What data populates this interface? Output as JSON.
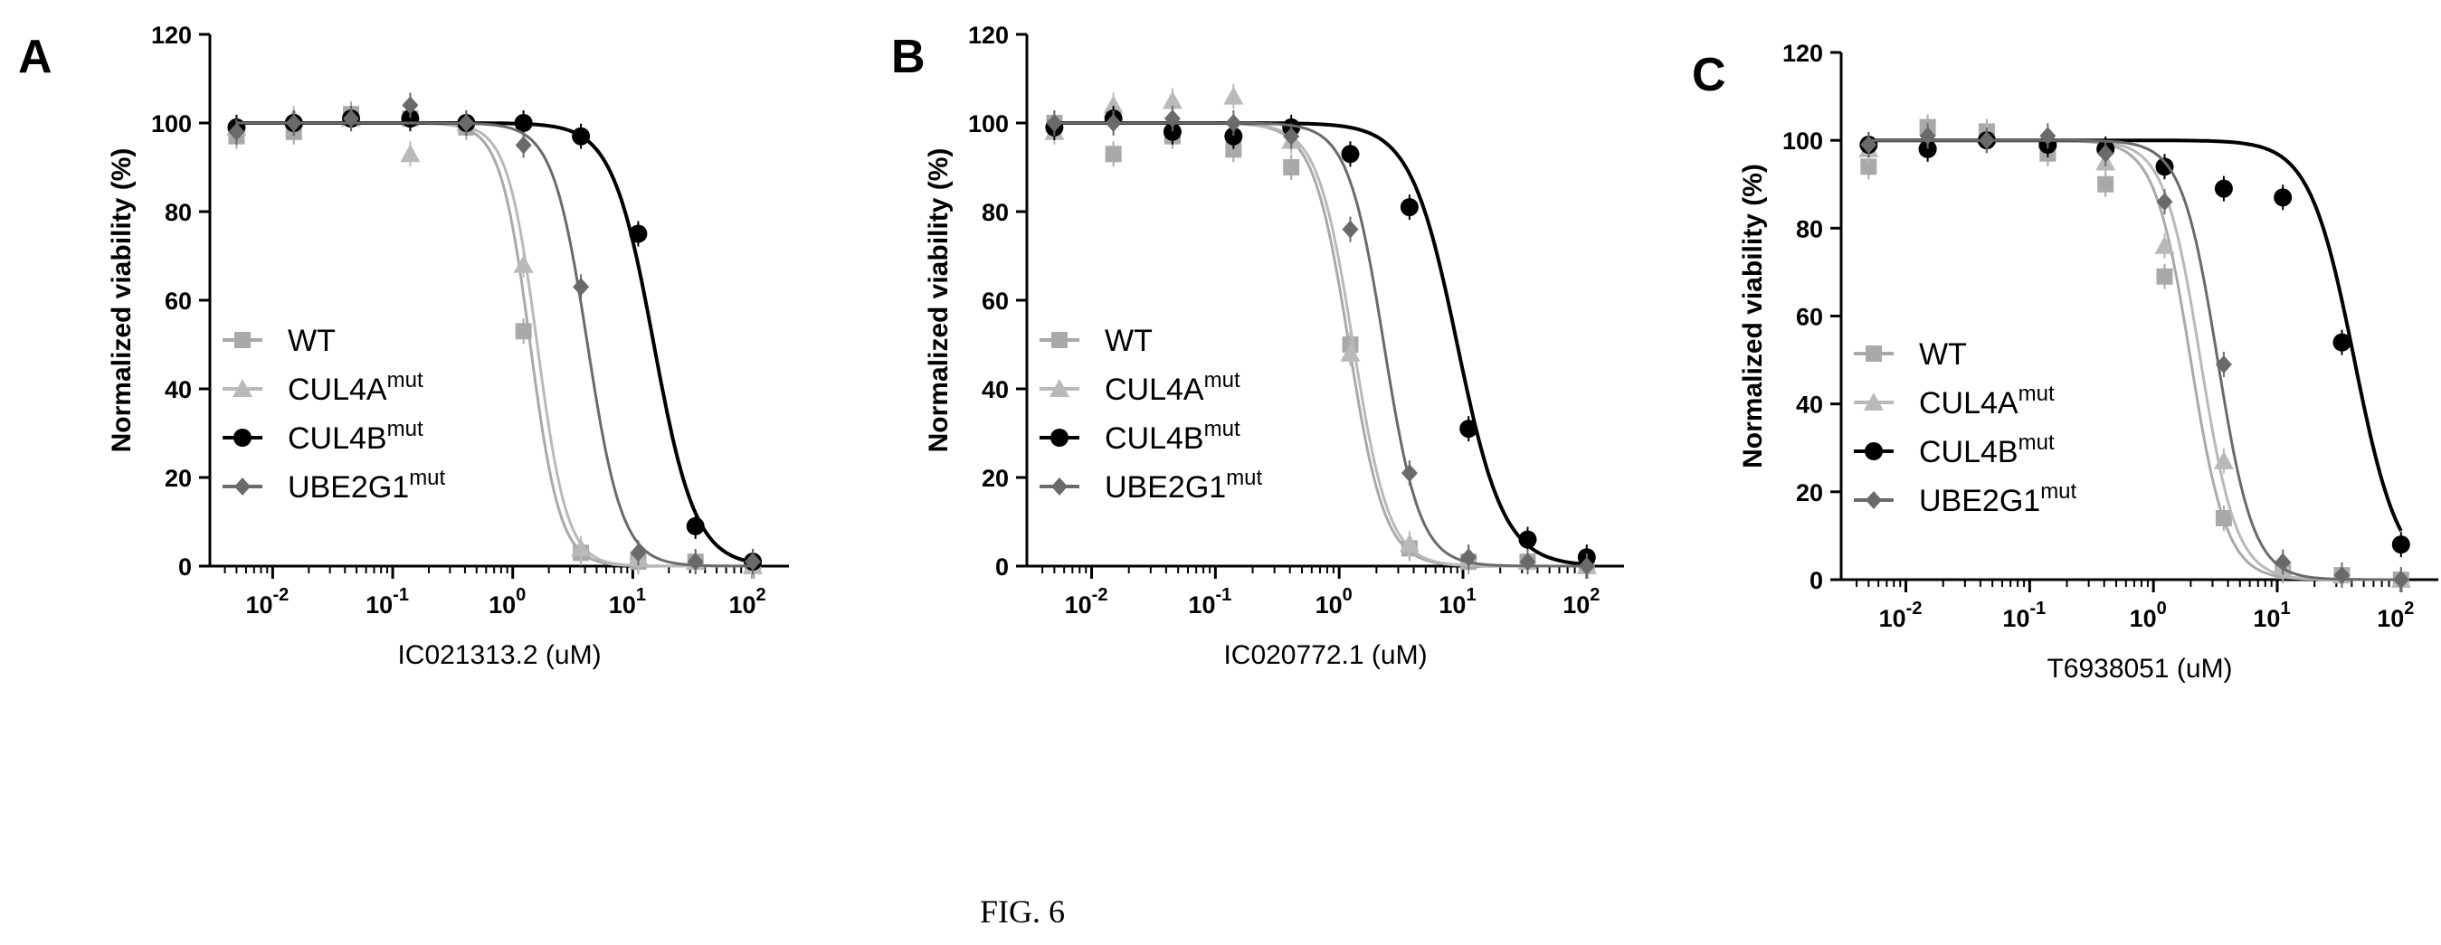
{
  "figure": {
    "caption": "FIG. 6"
  },
  "series_styles": {
    "WT": {
      "color": "#a9a9a9",
      "marker": "square"
    },
    "CUL4A": {
      "color": "#b9b9b9",
      "marker": "triangle"
    },
    "CUL4B": {
      "color": "#000000",
      "marker": "circle"
    },
    "UBE2G1": {
      "color": "#6a6a6a",
      "marker": "diamond"
    }
  },
  "chart_data": [
    {
      "panel": "A",
      "type": "scatter",
      "xlabel": "IC021313.2 (uM)",
      "ylabel": "Normalized viability (%)",
      "xscale": "log",
      "xlim": [
        0.003,
        200
      ],
      "ylim": [
        0,
        120
      ],
      "yticks": [
        "0",
        "20",
        "40",
        "60",
        "80",
        "100",
        "120"
      ],
      "xticks": [
        {
          "base": "10",
          "exp": "-2"
        },
        {
          "base": "10",
          "exp": "-1"
        },
        {
          "base": "10",
          "exp": "0"
        },
        {
          "base": "10",
          "exp": "1"
        },
        {
          "base": "10",
          "exp": "2"
        }
      ],
      "legend_position": "bottom-left",
      "series": [
        {
          "name": "WT",
          "sup": "",
          "ic50": 1.4,
          "hill": 3.5,
          "x": [
            0.005,
            0.015,
            0.045,
            0.14,
            0.41,
            1.23,
            3.7,
            11.1,
            33.3,
            100
          ],
          "y": [
            97,
            98,
            102,
            101,
            99,
            53,
            3,
            1,
            1,
            0
          ]
        },
        {
          "name": "CUL4A",
          "sup": "mut",
          "ic50": 1.6,
          "hill": 3.5,
          "x": [
            0.005,
            0.015,
            0.045,
            0.14,
            0.41,
            1.23,
            3.7,
            11.1,
            33.3,
            100
          ],
          "y": [
            99,
            101,
            101,
            93,
            100,
            68,
            4,
            2,
            1,
            0
          ]
        },
        {
          "name": "CUL4B",
          "sup": "mut",
          "ic50": 15,
          "hill": 2.5,
          "x": [
            0.005,
            0.015,
            0.045,
            0.14,
            0.41,
            1.23,
            3.7,
            11.1,
            33.3,
            100
          ],
          "y": [
            99,
            100,
            101,
            101,
            100,
            100,
            97,
            75,
            9,
            1
          ]
        },
        {
          "name": "UBE2G1",
          "sup": "mut",
          "ic50": 4.2,
          "hill": 3.0,
          "x": [
            0.005,
            0.015,
            0.045,
            0.14,
            0.41,
            1.23,
            3.7,
            11.1,
            33.3,
            100
          ],
          "y": [
            98,
            100,
            101,
            104,
            100,
            95,
            63,
            3,
            1,
            1
          ]
        }
      ]
    },
    {
      "panel": "B",
      "type": "scatter",
      "xlabel": "IC020772.1 (uM)",
      "ylabel": "Normalized viability (%)",
      "xscale": "log",
      "xlim": [
        0.003,
        200
      ],
      "ylim": [
        0,
        120
      ],
      "yticks": [
        "0",
        "20",
        "40",
        "60",
        "80",
        "100",
        "120"
      ],
      "xticks": [
        {
          "base": "10",
          "exp": "-2"
        },
        {
          "base": "10",
          "exp": "-1"
        },
        {
          "base": "10",
          "exp": "0"
        },
        {
          "base": "10",
          "exp": "1"
        },
        {
          "base": "10",
          "exp": "2"
        }
      ],
      "legend_position": "bottom-left",
      "series": [
        {
          "name": "WT",
          "sup": "",
          "ic50": 1.2,
          "hill": 3.0,
          "x": [
            0.005,
            0.015,
            0.045,
            0.14,
            0.41,
            1.23,
            3.7,
            11.1,
            33.3,
            100
          ],
          "y": [
            100,
            93,
            97,
            94,
            90,
            50,
            4,
            1,
            1,
            0
          ]
        },
        {
          "name": "CUL4A",
          "sup": "mut",
          "ic50": 1.3,
          "hill": 3.0,
          "x": [
            0.005,
            0.015,
            0.045,
            0.14,
            0.41,
            1.23,
            3.7,
            11.1,
            33.3,
            100
          ],
          "y": [
            98,
            104,
            105,
            106,
            96,
            48,
            5,
            2,
            1,
            0
          ]
        },
        {
          "name": "CUL4B",
          "sup": "mut",
          "ic50": 9,
          "hill": 2.3,
          "x": [
            0.005,
            0.015,
            0.045,
            0.14,
            0.41,
            1.23,
            3.7,
            11.1,
            33.3,
            100
          ],
          "y": [
            99,
            101,
            98,
            97,
            99,
            93,
            81,
            31,
            6,
            2
          ]
        },
        {
          "name": "UBE2G1",
          "sup": "mut",
          "ic50": 2.3,
          "hill": 3.0,
          "x": [
            0.005,
            0.015,
            0.045,
            0.14,
            0.41,
            1.23,
            3.7,
            11.1,
            33.3,
            100
          ],
          "y": [
            100,
            100,
            101,
            100,
            97,
            76,
            21,
            2,
            1,
            0
          ]
        }
      ]
    },
    {
      "panel": "C",
      "type": "scatter",
      "xlabel": "T6938051 (uM)",
      "ylabel": "Normalized viability (%)",
      "xscale": "log",
      "xlim": [
        0.003,
        200
      ],
      "ylim": [
        0,
        120
      ],
      "yticks": [
        "0",
        "20",
        "40",
        "60",
        "80",
        "100",
        "120"
      ],
      "xticks": [
        {
          "base": "10",
          "exp": "-2"
        },
        {
          "base": "10",
          "exp": "-1"
        },
        {
          "base": "10",
          "exp": "0"
        },
        {
          "base": "10",
          "exp": "1"
        },
        {
          "base": "10",
          "exp": "2"
        }
      ],
      "legend_position": "bottom-left",
      "series": [
        {
          "name": "WT",
          "sup": "",
          "ic50": 2.0,
          "hill": 3.0,
          "x": [
            0.005,
            0.015,
            0.045,
            0.14,
            0.41,
            1.23,
            3.7,
            11.1,
            33.3,
            100
          ],
          "y": [
            94,
            103,
            102,
            97,
            90,
            69,
            14,
            2,
            1,
            0
          ]
        },
        {
          "name": "CUL4A",
          "sup": "mut",
          "ic50": 2.4,
          "hill": 3.0,
          "x": [
            0.005,
            0.015,
            0.045,
            0.14,
            0.41,
            1.23,
            3.7,
            11.1,
            33.3,
            100
          ],
          "y": [
            98,
            100,
            101,
            100,
            95,
            76,
            27,
            3,
            1,
            0
          ]
        },
        {
          "name": "CUL4B",
          "sup": "mut",
          "ic50": 42,
          "hill": 2.4,
          "x": [
            0.005,
            0.015,
            0.045,
            0.14,
            0.41,
            1.23,
            3.7,
            11.1,
            33.3,
            100
          ],
          "y": [
            99,
            98,
            100,
            99,
            98,
            94,
            89,
            87,
            54,
            8
          ]
        },
        {
          "name": "UBE2G1",
          "sup": "mut",
          "ic50": 3.3,
          "hill": 3.0,
          "x": [
            0.005,
            0.015,
            0.045,
            0.14,
            0.41,
            1.23,
            3.7,
            11.1,
            33.3,
            100
          ],
          "y": [
            99,
            101,
            100,
            101,
            97,
            86,
            49,
            4,
            1,
            0
          ]
        }
      ]
    }
  ]
}
